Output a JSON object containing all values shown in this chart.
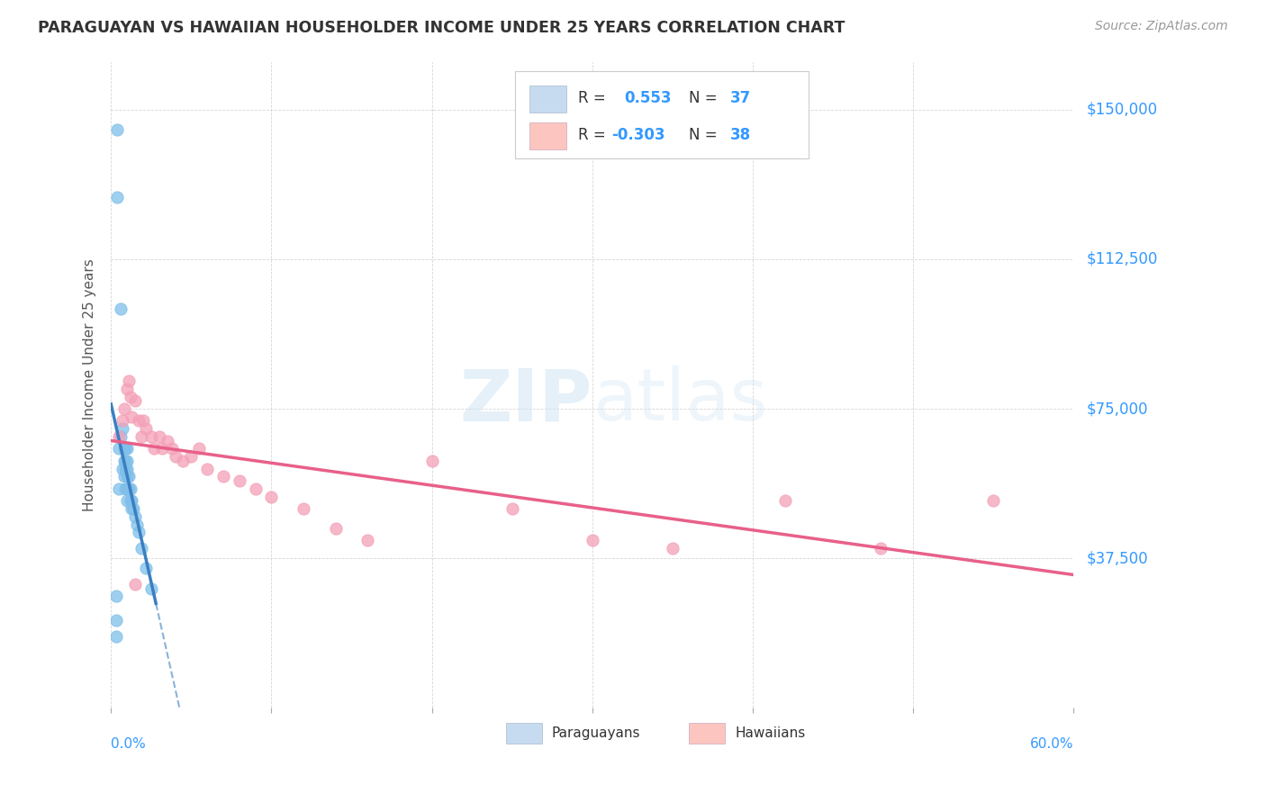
{
  "title": "PARAGUAYAN VS HAWAIIAN HOUSEHOLDER INCOME UNDER 25 YEARS CORRELATION CHART",
  "source": "Source: ZipAtlas.com",
  "ylabel": "Householder Income Under 25 years",
  "yticks": [
    0,
    37500,
    75000,
    112500,
    150000
  ],
  "ytick_labels": [
    "",
    "$37,500",
    "$75,000",
    "$112,500",
    "$150,000"
  ],
  "xmin": 0.0,
  "xmax": 0.6,
  "ymin": 0,
  "ymax": 162000,
  "paraguayan_r": 0.553,
  "paraguayan_n": 37,
  "hawaiian_r": -0.303,
  "hawaiian_n": 38,
  "blue_dot_color": "#7fbfea",
  "pink_dot_color": "#f4a0b8",
  "blue_line_color": "#3a7fc1",
  "pink_line_color": "#e8608a",
  "legend_box_blue": "#c6dbef",
  "legend_box_pink": "#fcc5c0",
  "watermark_color": "#d0e4f4",
  "paraguayan_x": [
    0.003,
    0.003,
    0.003,
    0.004,
    0.004,
    0.005,
    0.005,
    0.006,
    0.006,
    0.007,
    0.007,
    0.008,
    0.008,
    0.008,
    0.009,
    0.009,
    0.009,
    0.009,
    0.01,
    0.01,
    0.01,
    0.01,
    0.01,
    0.01,
    0.011,
    0.011,
    0.012,
    0.012,
    0.013,
    0.013,
    0.014,
    0.015,
    0.016,
    0.017,
    0.019,
    0.022,
    0.025
  ],
  "paraguayan_y": [
    28000,
    22000,
    18000,
    145000,
    128000,
    65000,
    55000,
    100000,
    68000,
    70000,
    60000,
    65000,
    62000,
    58000,
    65000,
    62000,
    60000,
    55000,
    65000,
    62000,
    60000,
    58000,
    55000,
    52000,
    58000,
    55000,
    55000,
    52000,
    52000,
    50000,
    50000,
    48000,
    46000,
    44000,
    40000,
    35000,
    30000
  ],
  "hawaiian_x": [
    0.005,
    0.007,
    0.008,
    0.01,
    0.011,
    0.012,
    0.013,
    0.015,
    0.017,
    0.019,
    0.02,
    0.022,
    0.025,
    0.027,
    0.03,
    0.032,
    0.035,
    0.038,
    0.04,
    0.045,
    0.05,
    0.055,
    0.06,
    0.07,
    0.08,
    0.09,
    0.1,
    0.12,
    0.14,
    0.16,
    0.2,
    0.25,
    0.3,
    0.35,
    0.42,
    0.48,
    0.55,
    0.015
  ],
  "hawaiian_y": [
    68000,
    72000,
    75000,
    80000,
    82000,
    78000,
    73000,
    77000,
    72000,
    68000,
    72000,
    70000,
    68000,
    65000,
    68000,
    65000,
    67000,
    65000,
    63000,
    62000,
    63000,
    65000,
    60000,
    58000,
    57000,
    55000,
    53000,
    50000,
    45000,
    42000,
    62000,
    50000,
    42000,
    40000,
    52000,
    40000,
    52000,
    31000
  ],
  "par_line_x0": 0.0,
  "par_line_x1": 0.032,
  "haw_line_x0": 0.0,
  "haw_line_x1": 0.6,
  "haw_line_y0": 70000,
  "haw_line_y1": 53000
}
